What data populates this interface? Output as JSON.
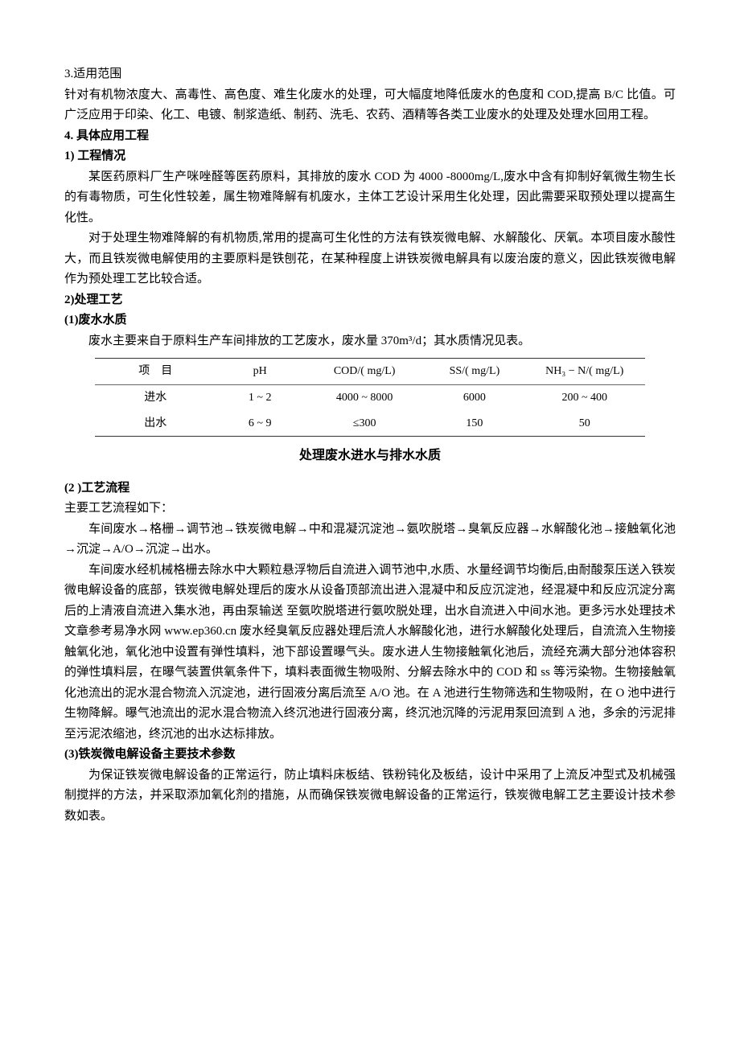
{
  "section3": {
    "heading": "3.适用范围",
    "body": "针对有机物浓度大、高毒性、高色度、难生化废水的处理，可大幅度地降低废水的色度和 COD,提高 B/C 比值。可广泛应用于印染、化工、电镀、制浆造纸、制药、洗毛、农药、酒精等各类工业废水的处理及处理水回用工程。"
  },
  "section4": {
    "heading": "4. 具体应用工程",
    "sub1heading": "1) 工程情况",
    "sub1p1": "某医药原料厂生产咪唑醛等医药原料，其排放的废水 COD 为 4000 -8000mg/L,废水中含有抑制好氧微生物生长的有毒物质，可生化性较差，属生物难降解有机废水，主体工艺设计采用生化处理，因此需要采取预处理以提高生化性。",
    "sub1p2": "对于处理生物难降解的有机物质,常用的提高可生化性的方法有铁炭微电解、水解酸化、厌氧。本项目废水酸性大，而且铁炭微电解使用的主要原料是铁刨花，在某种程度上讲铁炭微电解具有以废治废的意义，因此铁炭微电解作为预处理工艺比较合适。",
    "sub2heading": "2)处理工艺",
    "sub2_1heading": "(1)废水水质",
    "sub2_1p1": "废水主要来自于原料生产车间排放的工艺废水，废水量 370m³/d；其水质情况见表。"
  },
  "table": {
    "caption": "处理废水进水与排水水质",
    "columns": [
      "项　目",
      "pH",
      "COD/( mg/L)",
      "SS/( mg/L)",
      "NH₃ − N/( mg/L)"
    ],
    "rows": [
      [
        "进水",
        "1 ~ 2",
        "4000 ~ 8000",
        "6000",
        "200 ~ 400"
      ],
      [
        "出水",
        "6 ~ 9",
        "≤300",
        "150",
        "50"
      ]
    ],
    "col_widths": [
      "22%",
      "16%",
      "22%",
      "18%",
      "22%"
    ],
    "border_color": "#333333",
    "inner_border_color": "#666666",
    "font_size": 14
  },
  "section_flow": {
    "heading": "(2 )工艺流程",
    "intro": "主要工艺流程如下：",
    "p1": "车间废水→格栅→调节池→铁炭微电解→中和混凝沉淀池→氨吹脱塔→臭氧反应器→水解酸化池→接触氧化池→沉淀→A/O→沉淀→出水。",
    "p2": "车间废水经机械格栅去除水中大颗粒悬浮物后自流进入调节池中,水质、水量经调节均衡后,由耐酸泵压送入铁炭微电解设备的底部，铁炭微电解处理后的废水从设备顶部流出进入混凝中和反应沉淀池，经混凝中和反应沉淀分离后的上清液自流进入集水池，再由泵输送 至氨吹脱塔进行氨吹脱处理，出水自流进入中间水池。更多污水处理技术文章参考易净水网 www.ep360.cn 废水经臭氧反应器处理后流人水解酸化池，进行水解酸化处理后，自流流入生物接触氧化池，氧化池中设置有弹性填料，池下部设置曝气头。废水进人生物接触氧化池后，流经充满大部分池体容积的弹性填料层，在曝气装置供氧条件下，填料表面微生物吸附、分解去除水中的 COD 和 ss 等污染物。生物接触氧化池流出的泥水混合物流入沉淀池，进行固液分离后流至 A/O 池。在 A 池进行生物筛选和生物吸附，在 O 池中进行生物降解。曝气池流出的泥水混合物流入终沉池进行固液分离，终沉池沉降的污泥用泵回流到 A 池，多余的污泥排至污泥浓缩池，终沉池的出水达标排放。"
  },
  "section_params": {
    "heading": "(3)铁炭微电解设备主要技术参数",
    "p1": "为保证铁炭微电解设备的正常运行，防止填料床板结、铁粉钝化及板结，设计中采用了上流反冲型式及机械强制搅拌的方法，并采取添加氧化剂的措施，从而确保铁炭微电解设备的正常运行，铁炭微电解工艺主要设计技术参数如表。"
  }
}
